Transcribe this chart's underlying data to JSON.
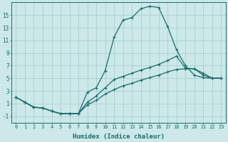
{
  "xlabel": "Humidex (Indice chaleur)",
  "bg_color": "#cce8e8",
  "grid_color": "#aacfcf",
  "line_color": "#1a6b6b",
  "x_ticks": [
    0,
    1,
    2,
    3,
    4,
    5,
    6,
    7,
    8,
    9,
    10,
    11,
    12,
    13,
    14,
    15,
    16,
    17,
    18,
    19,
    20,
    21,
    22,
    23
  ],
  "y_ticks": [
    -1,
    1,
    3,
    5,
    7,
    9,
    11,
    13,
    15
  ],
  "xlim": [
    -0.5,
    23.5
  ],
  "ylim": [
    -2.0,
    17.0
  ],
  "line1_x": [
    0,
    1,
    2,
    3,
    4,
    5,
    6,
    7,
    8,
    9,
    10,
    11,
    12,
    13,
    14,
    15,
    16,
    17,
    18,
    19,
    20,
    21,
    22,
    23
  ],
  "line1_y": [
    2.0,
    1.2,
    0.4,
    0.3,
    -0.2,
    -0.6,
    -0.6,
    -0.6,
    2.8,
    3.5,
    6.2,
    11.5,
    14.2,
    14.6,
    16.0,
    16.4,
    16.2,
    13.2,
    9.5,
    7.0,
    5.5,
    5.1,
    5.0,
    5.0
  ],
  "line2_x": [
    0,
    1,
    2,
    3,
    4,
    5,
    6,
    7,
    8,
    9,
    10,
    11,
    12,
    13,
    14,
    15,
    16,
    17,
    18,
    19,
    20,
    21,
    22,
    23
  ],
  "line2_y": [
    2.0,
    1.2,
    0.4,
    0.3,
    -0.2,
    -0.6,
    -0.6,
    -0.6,
    1.2,
    2.2,
    3.5,
    4.8,
    5.3,
    5.8,
    6.3,
    6.7,
    7.2,
    7.8,
    8.5,
    6.6,
    6.5,
    5.5,
    5.0,
    5.0
  ],
  "line3_x": [
    0,
    1,
    2,
    3,
    4,
    5,
    6,
    7,
    8,
    9,
    10,
    11,
    12,
    13,
    14,
    15,
    16,
    17,
    18,
    19,
    20,
    21,
    22,
    23
  ],
  "line3_y": [
    2.0,
    1.2,
    0.4,
    0.3,
    -0.2,
    -0.6,
    -0.6,
    -0.6,
    0.8,
    1.5,
    2.5,
    3.2,
    3.8,
    4.2,
    4.7,
    5.1,
    5.5,
    6.0,
    6.4,
    6.5,
    6.5,
    5.8,
    5.0,
    5.0
  ]
}
